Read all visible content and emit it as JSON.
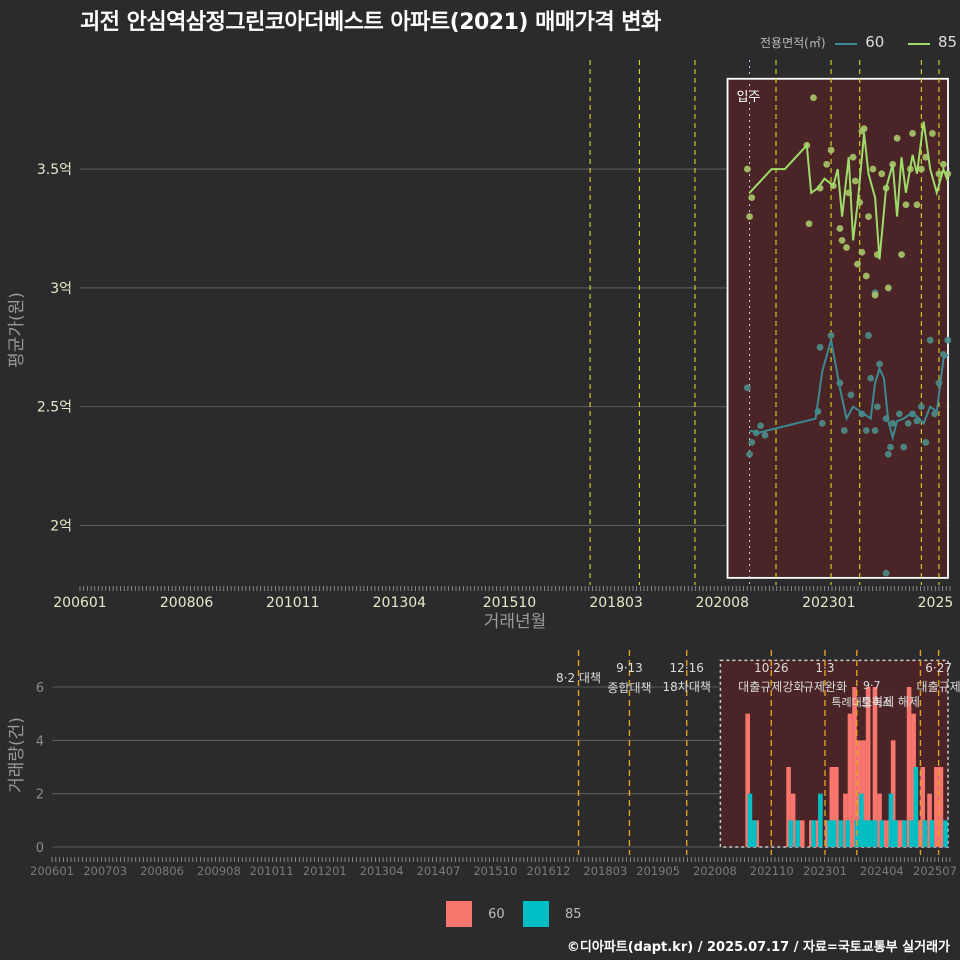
{
  "title": "괴전 안심역삼정그린코아더베스트 아파트(2021) 매매가격 변화",
  "footer": "©디아파트(dapt.kr) / 2025.07.17 / 자료=국토교통부 실거래가",
  "legend_top": {
    "title": "전용면적(㎡)",
    "items": [
      {
        "name": "60",
        "color": "#3b8a93"
      },
      {
        "name": "85",
        "color": "#9ddc6a"
      }
    ]
  },
  "legend_bottom": {
    "items": [
      {
        "name": "60",
        "color": "#f8766d"
      },
      {
        "name": "85",
        "color": "#00bfc4"
      }
    ]
  },
  "chart_data": [
    {
      "type": "line",
      "name": "price",
      "xlabel": "거래년월",
      "ylabel": "평균가(원)",
      "xlim": [
        2006.0,
        2025.75
      ],
      "ylim": [
        1.75,
        3.98
      ],
      "x_ticks": [
        {
          "x": 2006.0,
          "label": "200601"
        },
        {
          "x": 2008.42,
          "label": "200806"
        },
        {
          "x": 2010.83,
          "label": "201011"
        },
        {
          "x": 2013.25,
          "label": "201304"
        },
        {
          "x": 2015.75,
          "label": "201510"
        },
        {
          "x": 2018.17,
          "label": "201803"
        },
        {
          "x": 2020.58,
          "label": "202008"
        },
        {
          "x": 2023.0,
          "label": "202301"
        },
        {
          "x": 2025.42,
          "label": "2025"
        }
      ],
      "y_ticks": [
        {
          "y": 2.0,
          "label": "2억"
        },
        {
          "y": 2.5,
          "label": "2.5억"
        },
        {
          "y": 3.0,
          "label": "3억"
        },
        {
          "y": 3.5,
          "label": "3.5억"
        }
      ],
      "policy_lines": [
        2017.58,
        2018.7,
        2019.96,
        2021.8,
        2023.05,
        2023.7,
        2025.1,
        2025.5
      ],
      "occupancy": {
        "label": "입주",
        "x_start": 2020.7,
        "x_end": 2025.75,
        "y_start": 1.78,
        "y_end": 3.88,
        "line_x": 2021.2
      },
      "series": [
        {
          "name": "60",
          "line": [
            [
              2021.2,
              2.4
            ],
            [
              2021.4,
              2.39
            ],
            [
              2021.6,
              2.4
            ],
            [
              2022.7,
              2.45
            ],
            [
              2022.85,
              2.65
            ],
            [
              2023.05,
              2.78
            ],
            [
              2023.25,
              2.58
            ],
            [
              2023.4,
              2.45
            ],
            [
              2023.55,
              2.5
            ],
            [
              2023.8,
              2.47
            ],
            [
              2023.95,
              2.45
            ],
            [
              2024.05,
              2.6
            ],
            [
              2024.15,
              2.66
            ],
            [
              2024.25,
              2.62
            ],
            [
              2024.35,
              2.44
            ],
            [
              2024.45,
              2.37
            ],
            [
              2024.55,
              2.44
            ],
            [
              2024.7,
              2.45
            ],
            [
              2024.85,
              2.47
            ],
            [
              2025.0,
              2.46
            ],
            [
              2025.15,
              2.43
            ],
            [
              2025.3,
              2.5
            ],
            [
              2025.45,
              2.48
            ],
            [
              2025.6,
              2.7
            ],
            [
              2025.7,
              2.72
            ]
          ],
          "points": [
            [
              2021.15,
              2.58
            ],
            [
              2021.2,
              2.3
            ],
            [
              2021.25,
              2.35
            ],
            [
              2021.35,
              2.39
            ],
            [
              2021.45,
              2.42
            ],
            [
              2021.55,
              2.38
            ],
            [
              2022.75,
              2.48
            ],
            [
              2022.8,
              2.75
            ],
            [
              2022.85,
              2.43
            ],
            [
              2023.05,
              2.8
            ],
            [
              2023.25,
              2.6
            ],
            [
              2023.35,
              2.4
            ],
            [
              2023.5,
              2.55
            ],
            [
              2023.75,
              2.47
            ],
            [
              2023.85,
              2.4
            ],
            [
              2023.95,
              2.62
            ],
            [
              2024.05,
              2.4
            ],
            [
              2024.1,
              2.5
            ],
            [
              2024.15,
              2.68
            ],
            [
              2024.3,
              2.45
            ],
            [
              2024.35,
              2.3
            ],
            [
              2024.4,
              2.33
            ],
            [
              2024.45,
              2.43
            ],
            [
              2024.3,
              1.8
            ],
            [
              2024.6,
              2.47
            ],
            [
              2024.7,
              2.33
            ],
            [
              2024.8,
              2.43
            ],
            [
              2024.9,
              2.47
            ],
            [
              2025.0,
              2.44
            ],
            [
              2025.1,
              2.5
            ],
            [
              2025.2,
              2.35
            ],
            [
              2025.3,
              2.78
            ],
            [
              2025.4,
              2.47
            ],
            [
              2025.5,
              2.6
            ],
            [
              2025.6,
              2.72
            ],
            [
              2025.7,
              2.78
            ],
            [
              2024.05,
              2.98
            ],
            [
              2023.9,
              2.8
            ]
          ]
        },
        {
          "name": "85",
          "line": [
            [
              2021.2,
              3.4
            ],
            [
              2021.7,
              3.5
            ],
            [
              2022.0,
              3.5
            ],
            [
              2022.5,
              3.6
            ],
            [
              2022.6,
              3.4
            ],
            [
              2022.75,
              3.42
            ],
            [
              2022.9,
              3.46
            ],
            [
              2023.1,
              3.43
            ],
            [
              2023.2,
              3.5
            ],
            [
              2023.3,
              3.3
            ],
            [
              2023.45,
              3.55
            ],
            [
              2023.55,
              3.2
            ],
            [
              2023.65,
              3.35
            ],
            [
              2023.8,
              3.65
            ],
            [
              2023.9,
              3.48
            ],
            [
              2024.05,
              3.38
            ],
            [
              2024.15,
              3.12
            ],
            [
              2024.3,
              3.42
            ],
            [
              2024.45,
              3.52
            ],
            [
              2024.55,
              3.3
            ],
            [
              2024.65,
              3.55
            ],
            [
              2024.75,
              3.4
            ],
            [
              2024.9,
              3.56
            ],
            [
              2025.0,
              3.48
            ],
            [
              2025.15,
              3.7
            ],
            [
              2025.3,
              3.5
            ],
            [
              2025.45,
              3.4
            ],
            [
              2025.6,
              3.5
            ],
            [
              2025.7,
              3.45
            ]
          ],
          "points": [
            [
              2021.15,
              3.5
            ],
            [
              2021.2,
              3.3
            ],
            [
              2021.25,
              3.38
            ],
            [
              2022.5,
              3.6
            ],
            [
              2022.55,
              3.27
            ],
            [
              2022.65,
              3.8
            ],
            [
              2022.8,
              3.42
            ],
            [
              2022.95,
              3.52
            ],
            [
              2023.05,
              3.58
            ],
            [
              2023.1,
              3.43
            ],
            [
              2023.25,
              3.25
            ],
            [
              2023.3,
              3.2
            ],
            [
              2023.4,
              3.17
            ],
            [
              2023.45,
              3.4
            ],
            [
              2023.55,
              3.55
            ],
            [
              2023.6,
              3.45
            ],
            [
              2023.7,
              3.36
            ],
            [
              2023.75,
              3.66
            ],
            [
              2023.8,
              3.67
            ],
            [
              2023.65,
              3.1
            ],
            [
              2023.85,
              3.05
            ],
            [
              2023.9,
              3.3
            ],
            [
              2023.75,
              3.15
            ],
            [
              2024.0,
              3.5
            ],
            [
              2024.1,
              3.14
            ],
            [
              2024.2,
              3.48
            ],
            [
              2024.3,
              3.42
            ],
            [
              2024.35,
              3.0
            ],
            [
              2024.45,
              3.52
            ],
            [
              2024.55,
              3.63
            ],
            [
              2024.65,
              3.14
            ],
            [
              2024.75,
              3.35
            ],
            [
              2024.85,
              3.5
            ],
            [
              2024.9,
              3.65
            ],
            [
              2025.0,
              3.35
            ],
            [
              2025.1,
              3.5
            ],
            [
              2025.2,
              3.55
            ],
            [
              2025.35,
              3.65
            ],
            [
              2025.5,
              3.48
            ],
            [
              2025.6,
              3.52
            ],
            [
              2025.7,
              3.48
            ],
            [
              2024.05,
              2.97
            ]
          ]
        }
      ]
    },
    {
      "type": "bar",
      "name": "volume",
      "ylabel": "거래량(건)",
      "xlim": [
        2006.0,
        2025.75
      ],
      "ylim": [
        -0.3,
        7.2
      ],
      "y_ticks": [
        {
          "y": 0,
          "label": "0"
        },
        {
          "y": 2,
          "label": "2"
        },
        {
          "y": 4,
          "label": "4"
        },
        {
          "y": 6,
          "label": "6"
        }
      ],
      "x_ticks": [
        {
          "x": 2006.0,
          "label": "200601"
        },
        {
          "x": 2007.17,
          "label": "200703"
        },
        {
          "x": 2008.42,
          "label": "200806"
        },
        {
          "x": 2009.67,
          "label": "200908"
        },
        {
          "x": 2010.83,
          "label": "201011"
        },
        {
          "x": 2012.0,
          "label": "201201"
        },
        {
          "x": 2013.25,
          "label": "201304"
        },
        {
          "x": 2014.5,
          "label": "201407"
        },
        {
          "x": 2015.75,
          "label": "201510"
        },
        {
          "x": 2016.92,
          "label": "201612"
        },
        {
          "x": 2018.17,
          "label": "201803"
        },
        {
          "x": 2019.33,
          "label": "201905"
        },
        {
          "x": 2020.58,
          "label": "202008"
        },
        {
          "x": 2021.83,
          "label": "202110"
        },
        {
          "x": 2023.0,
          "label": "202301"
        },
        {
          "x": 2024.25,
          "label": "202404"
        },
        {
          "x": 2025.42,
          "label": "202507"
        }
      ],
      "occupancy": {
        "x_start": 2020.7,
        "x_end": 2025.75,
        "y_start": 0,
        "y_end": 7
      },
      "policies": [
        {
          "x": 2017.58,
          "date": "8·2 대책",
          "text": ""
        },
        {
          "x": 2018.7,
          "date": "9·13",
          "text": "종합대책"
        },
        {
          "x": 2019.96,
          "date": "12·16",
          "text": "18차대책"
        },
        {
          "x": 2021.82,
          "date": "10·26",
          "text": "대출규제강화"
        },
        {
          "x": 2023.0,
          "date": "1·3",
          "text": "규제완화"
        },
        {
          "x": 2023.7,
          "date": "",
          "text": "9·7 특례대출축소"
        },
        {
          "x": 2025.5,
          "date": "6·27",
          "text": "대출규제"
        },
        {
          "x": 2025.1,
          "date": "",
          "text": "토허제 해제"
        }
      ],
      "series": [
        {
          "name": "60",
          "color": "#f8766d",
          "bars": [
            [
              2021.3,
              5
            ],
            [
              2021.4,
              1
            ],
            [
              2021.5,
              1
            ],
            [
              2022.2,
              3
            ],
            [
              2022.3,
              2
            ],
            [
              2022.5,
              1
            ],
            [
              2022.7,
              1
            ],
            [
              2022.85,
              1
            ],
            [
              2023.05,
              1
            ],
            [
              2023.15,
              3
            ],
            [
              2023.25,
              3
            ],
            [
              2023.45,
              2
            ],
            [
              2023.55,
              5
            ],
            [
              2023.65,
              6
            ],
            [
              2023.75,
              4
            ],
            [
              2023.85,
              4
            ],
            [
              2023.95,
              6
            ],
            [
              2024.1,
              6
            ],
            [
              2024.2,
              2
            ],
            [
              2024.3,
              1
            ],
            [
              2024.4,
              1
            ],
            [
              2024.5,
              4
            ],
            [
              2024.6,
              1
            ],
            [
              2024.7,
              1
            ],
            [
              2024.85,
              6
            ],
            [
              2024.95,
              5
            ],
            [
              2025.05,
              1
            ],
            [
              2025.15,
              3
            ],
            [
              2025.3,
              2
            ],
            [
              2025.45,
              3
            ],
            [
              2025.55,
              3
            ]
          ]
        },
        {
          "name": "85",
          "color": "#00bfc4",
          "bars": [
            [
              2021.35,
              2
            ],
            [
              2021.45,
              1
            ],
            [
              2022.25,
              1
            ],
            [
              2022.4,
              1
            ],
            [
              2022.75,
              1
            ],
            [
              2022.9,
              2
            ],
            [
              2023.1,
              1
            ],
            [
              2023.2,
              1
            ],
            [
              2023.35,
              1
            ],
            [
              2023.5,
              1
            ],
            [
              2023.7,
              1
            ],
            [
              2023.8,
              2
            ],
            [
              2023.9,
              1
            ],
            [
              2024.0,
              1
            ],
            [
              2024.1,
              1
            ],
            [
              2024.25,
              1
            ],
            [
              2024.45,
              2
            ],
            [
              2024.55,
              1
            ],
            [
              2024.75,
              1
            ],
            [
              2024.9,
              1
            ],
            [
              2025.0,
              3
            ],
            [
              2025.2,
              1
            ],
            [
              2025.35,
              1
            ],
            [
              2025.65,
              1
            ]
          ]
        }
      ]
    }
  ]
}
